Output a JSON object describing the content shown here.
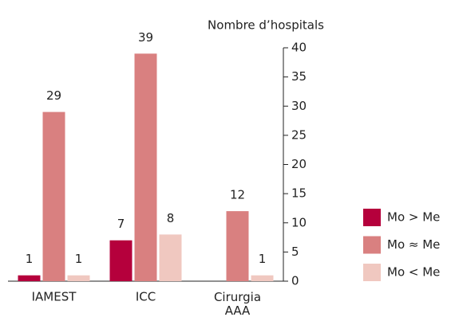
{
  "chart_data": {
    "type": "bar",
    "y_label": "Nombre d’hospitals",
    "categories": [
      "IAMEST",
      "ICC",
      "Cirurgia AAA"
    ],
    "series": [
      {
        "name": "Mo > Me",
        "color": "#b5003c",
        "values": [
          1,
          7,
          null
        ]
      },
      {
        "name": "Mo ≈ Me",
        "color": "#d98080",
        "values": [
          29,
          39,
          12
        ]
      },
      {
        "name": "Mo < Me",
        "color": "#f0c8c0",
        "values": [
          1,
          8,
          1
        ]
      }
    ],
    "ylim": [
      0,
      40
    ],
    "yticks": [
      0,
      5,
      10,
      15,
      20,
      25,
      30,
      35,
      40
    ],
    "y_axis_side": "right",
    "legend": "right"
  }
}
